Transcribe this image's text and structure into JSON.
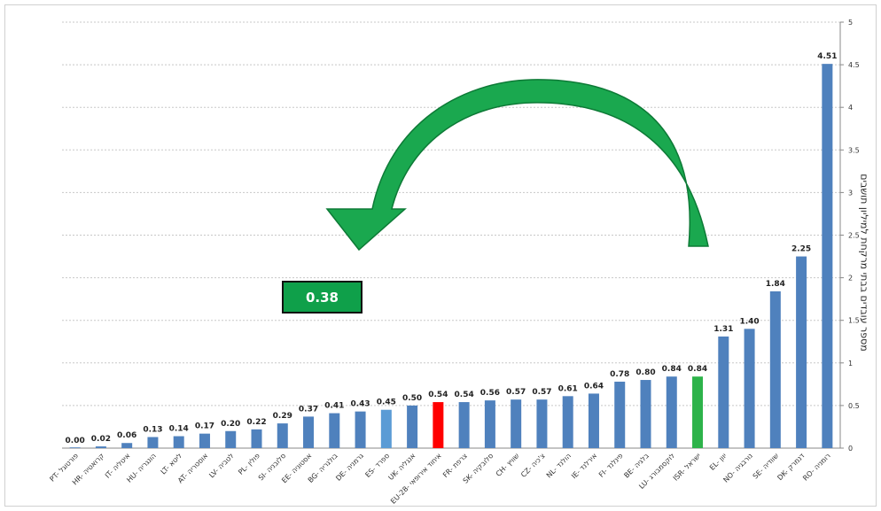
{
  "chart_data": {
    "type": "bar",
    "categories": [
      "PT- פורטוגל",
      "HR- קרואטיה",
      "IT- איטליה",
      "HU- הונגריה",
      "LT- ליטא",
      "AT- אוסטריה",
      "LV- לטביה",
      "PL- פולין",
      "SI- סלובניה",
      "EE- אסטוניה",
      "BG- בולגריה",
      "DE- גרמניה",
      "ES- ספרד",
      "UK- אנגליה",
      "EU-28- איחוד אירופאי",
      "FR- צרפת",
      "SK- סלובקיה",
      "CH- שוויץ",
      "CZ- צ'כיה",
      "NL- הולנד",
      "IE- אירלנד",
      "FI- פינלנד",
      "BE- בלגיה",
      "LU- לוקסמבורג",
      "ISR- ישראל",
      "EL- יוון",
      "NO- נורבגיה",
      "SE- שוודיה",
      "DK- דנמרק",
      "RO- רומניה"
    ],
    "values": [
      0.0,
      0.02,
      0.06,
      0.13,
      0.14,
      0.17,
      0.2,
      0.22,
      0.29,
      0.37,
      0.41,
      0.43,
      0.45,
      0.5,
      0.54,
      0.54,
      0.56,
      0.57,
      0.57,
      0.61,
      0.64,
      0.78,
      0.8,
      0.84,
      0.84,
      1.31,
      1.4,
      1.84,
      2.25,
      4.51
    ],
    "value_labels": [
      "0.00",
      "0.02",
      "0.06",
      "0.13",
      "0.14",
      "0.17",
      "0.20",
      "0.22",
      "0.29",
      "0.37",
      "0.41",
      "0.43",
      "0.45",
      "0.50",
      "0.54",
      "0.54",
      "0.56",
      "0.57",
      "0.57",
      "0.61",
      "0.64",
      "0.78",
      "0.80",
      "0.84",
      "0.84",
      "1.31",
      "1.40",
      "1.84",
      "2.25",
      "4.51"
    ],
    "bar_colors": {
      "default": "#4f81bd",
      "highlight_light": "#5b9bd5",
      "eu": "#ff0000",
      "israel": "#2db34a"
    },
    "color_map": {
      "12": "highlight_light",
      "14": "eu",
      "24": "israel"
    },
    "ylabel": "מספר עובדים בבתי מרקחת למיליון תושבים",
    "ylim": [
      0,
      5
    ],
    "yticks": [
      "0",
      "0.5",
      "1",
      "1.5",
      "2",
      "2.5",
      "3",
      "3.5",
      "4",
      "4.5",
      "5"
    ],
    "y_axis_side": "right",
    "grid": true,
    "annotation": {
      "label": "0.38",
      "color": "#0fa04a",
      "arrow_color": "#1aa84f"
    }
  }
}
